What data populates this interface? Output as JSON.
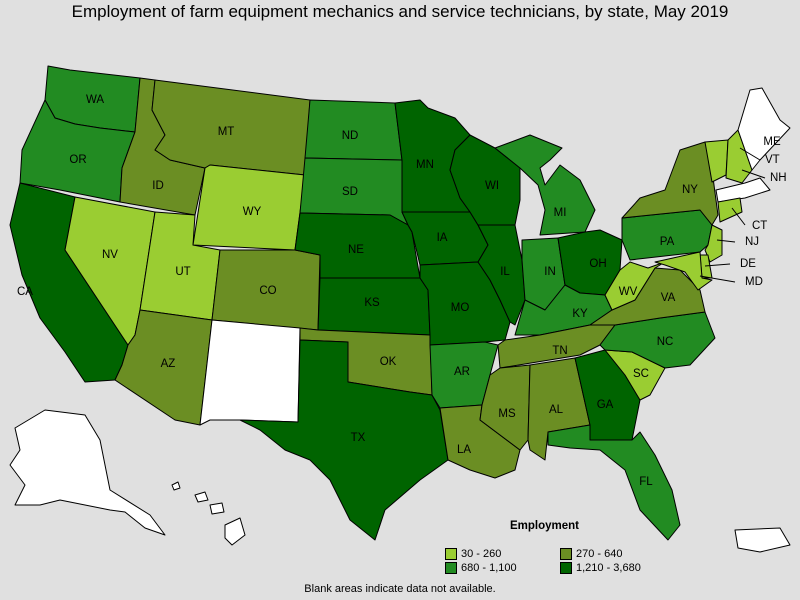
{
  "title": "Employment of farm equipment mechanics and service technicians, by state, May 2019",
  "legend": {
    "title": "Employment",
    "items": [
      {
        "label": "30 - 260",
        "color": "#9acd32"
      },
      {
        "label": "270 - 640",
        "color": "#6b8e23"
      },
      {
        "label": "680 - 1,100",
        "color": "#228b22"
      },
      {
        "label": "1,210 - 3,680",
        "color": "#006400"
      }
    ]
  },
  "note": "Blank areas indicate data not available.",
  "states": {
    "WA": {
      "label": "WA",
      "class": 2
    },
    "OR": {
      "label": "OR",
      "class": 2
    },
    "CA": {
      "label": "CA",
      "class": 3
    },
    "ID": {
      "label": "ID",
      "class": 1
    },
    "NV": {
      "label": "NV",
      "class": 0
    },
    "UT": {
      "label": "UT",
      "class": 0
    },
    "AZ": {
      "label": "AZ",
      "class": 1
    },
    "MT": {
      "label": "MT",
      "class": 1
    },
    "WY": {
      "label": "WY",
      "class": 0
    },
    "CO": {
      "label": "CO",
      "class": 1
    },
    "NM": {
      "label": "",
      "class": -1
    },
    "ND": {
      "label": "ND",
      "class": 2
    },
    "SD": {
      "label": "SD",
      "class": 2
    },
    "NE": {
      "label": "NE",
      "class": 3
    },
    "KS": {
      "label": "KS",
      "class": 3
    },
    "OK": {
      "label": "OK",
      "class": 1
    },
    "TX": {
      "label": "TX",
      "class": 3
    },
    "MN": {
      "label": "MN",
      "class": 3
    },
    "IA": {
      "label": "IA",
      "class": 3
    },
    "MO": {
      "label": "MO",
      "class": 3
    },
    "AR": {
      "label": "AR",
      "class": 2
    },
    "LA": {
      "label": "LA",
      "class": 1
    },
    "WI": {
      "label": "WI",
      "class": 3
    },
    "IL": {
      "label": "IL",
      "class": 3
    },
    "MI": {
      "label": "MI",
      "class": 2
    },
    "IN": {
      "label": "IN",
      "class": 2
    },
    "OH": {
      "label": "OH",
      "class": 3
    },
    "KY": {
      "label": "KY",
      "class": 2
    },
    "TN": {
      "label": "TN",
      "class": 1
    },
    "MS": {
      "label": "MS",
      "class": 1
    },
    "AL": {
      "label": "AL",
      "class": 1
    },
    "GA": {
      "label": "GA",
      "class": 3
    },
    "FL": {
      "label": "FL",
      "class": 2
    },
    "SC": {
      "label": "SC",
      "class": 0
    },
    "NC": {
      "label": "NC",
      "class": 2
    },
    "VA": {
      "label": "VA",
      "class": 1
    },
    "WV": {
      "label": "WV",
      "class": 0
    },
    "PA": {
      "label": "PA",
      "class": 2
    },
    "NY": {
      "label": "NY",
      "class": 1
    },
    "VT": {
      "label": "VT",
      "class": 0
    },
    "NH": {
      "label": "NH",
      "class": 0
    },
    "ME": {
      "label": "ME",
      "class": -1
    },
    "MA": {
      "label": "",
      "class": -1
    },
    "CT": {
      "label": "CT",
      "class": 0
    },
    "NJ": {
      "label": "NJ",
      "class": 0
    },
    "DE": {
      "label": "DE",
      "class": 0
    },
    "MD": {
      "label": "MD",
      "class": 0
    },
    "AK": {
      "label": "",
      "class": -1
    },
    "HI": {
      "label": "",
      "class": -1
    },
    "PR": {
      "label": "",
      "class": -1
    }
  }
}
